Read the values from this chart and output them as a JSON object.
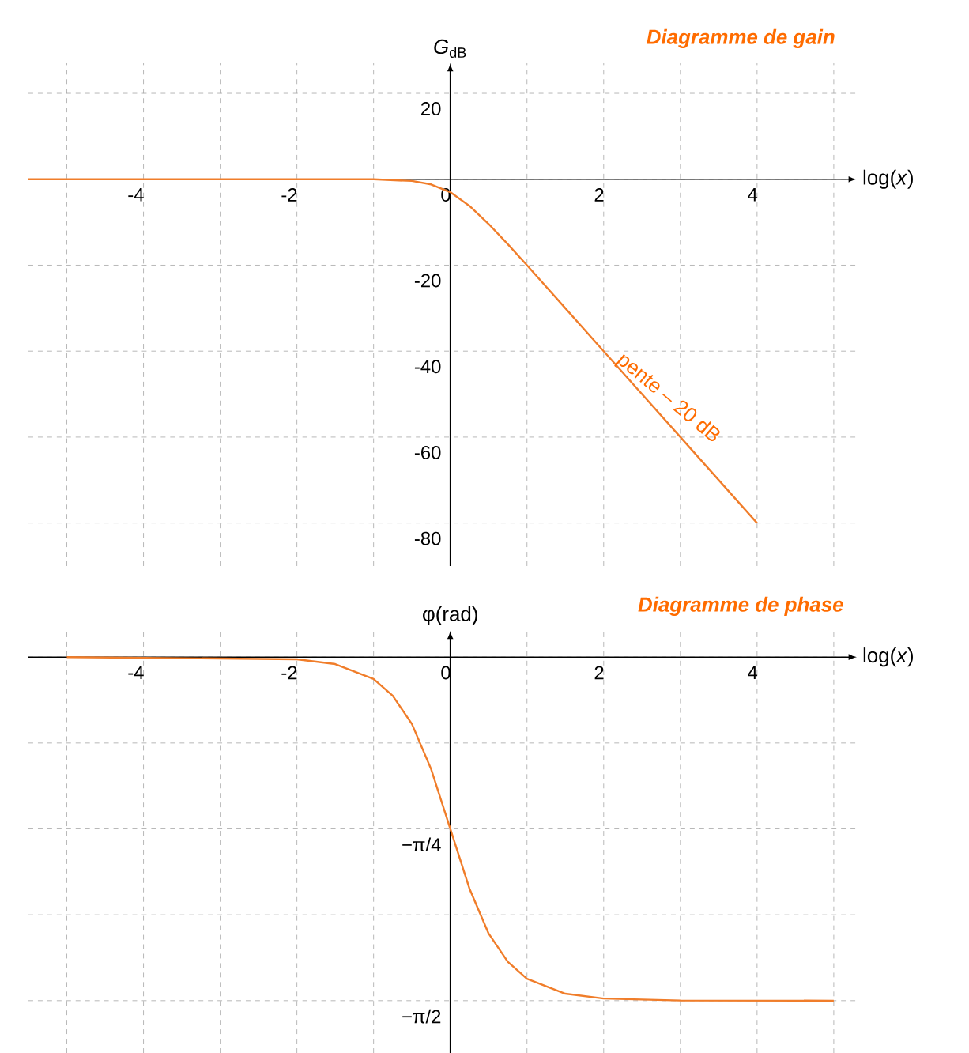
{
  "chart_data": [
    {
      "type": "line",
      "title": "Diagramme de gain",
      "xlabel": "log(*x*)",
      "ylabel": "*G*$_{dB}$",
      "x": [
        -5.5,
        -2,
        -1,
        -0.5,
        -0.25,
        0,
        0.25,
        0.5,
        0.75,
        1,
        1.25,
        1.5,
        2,
        3,
        4
      ],
      "series": [
        {
          "color": "#f07d2a",
          "values": [
            0,
            0,
            0,
            -0.4,
            -1.2,
            -3,
            -6.2,
            -10.4,
            -15.1,
            -20,
            -25,
            -30,
            -40,
            -60,
            -80
          ]
        }
      ],
      "xlim": [
        -5.5,
        5.3
      ],
      "ylim": [
        -90,
        27
      ],
      "xticks": [
        {
          "value": -5,
          "label": null
        },
        -4,
        {
          "value": -3,
          "label": null
        },
        -2,
        {
          "value": -1,
          "label": null
        },
        0,
        {
          "value": 1,
          "label": null
        },
        2,
        {
          "value": 3,
          "label": null
        },
        4,
        {
          "value": 5,
          "label": null
        }
      ],
      "yticks": [
        -80,
        -60,
        -40,
        -20,
        {
          "value": 0,
          "label": null
        },
        20
      ],
      "grid": true,
      "annotations": [
        {
          "text": "pente – 20 dB",
          "x": 2.7,
          "y": -54
        }
      ]
    },
    {
      "type": "line",
      "title": "Diagramme de phase",
      "xlabel": "log(*x*)",
      "ylabel": "φ(rad)",
      "x": [
        -5,
        -2,
        -1.5,
        -1,
        -0.75,
        -0.5,
        -0.25,
        0,
        0.25,
        0.5,
        0.75,
        1,
        1.5,
        2,
        3,
        5
      ],
      "series": [
        {
          "color": "#f07d2a",
          "values": [
            0,
            -0.01,
            -0.032,
            -0.1,
            -0.177,
            -0.306,
            -0.512,
            -0.785,
            -1.058,
            -1.264,
            -1.393,
            -1.471,
            -1.539,
            -1.561,
            -1.57,
            -1.571
          ]
        }
      ],
      "xlim": [
        -5.5,
        5.3
      ],
      "ylim": [
        -1.81,
        0.12
      ],
      "xticks": [
        {
          "value": -5,
          "label": null
        },
        -4,
        {
          "value": -3,
          "label": null
        },
        -2,
        {
          "value": -1,
          "label": null
        },
        0,
        {
          "value": 1,
          "label": null
        },
        2,
        {
          "value": 3,
          "label": null
        },
        4,
        {
          "value": 5,
          "label": null
        }
      ],
      "yticks": [
        {
          "value": -1.5708,
          "label": "−π/2"
        },
        {
          "value": -1.1781,
          "label": null
        },
        {
          "value": -0.7854,
          "label": "−π/4"
        },
        {
          "value": -0.3927,
          "label": null
        },
        {
          "value": 0,
          "label": null
        }
      ],
      "grid": true
    }
  ]
}
